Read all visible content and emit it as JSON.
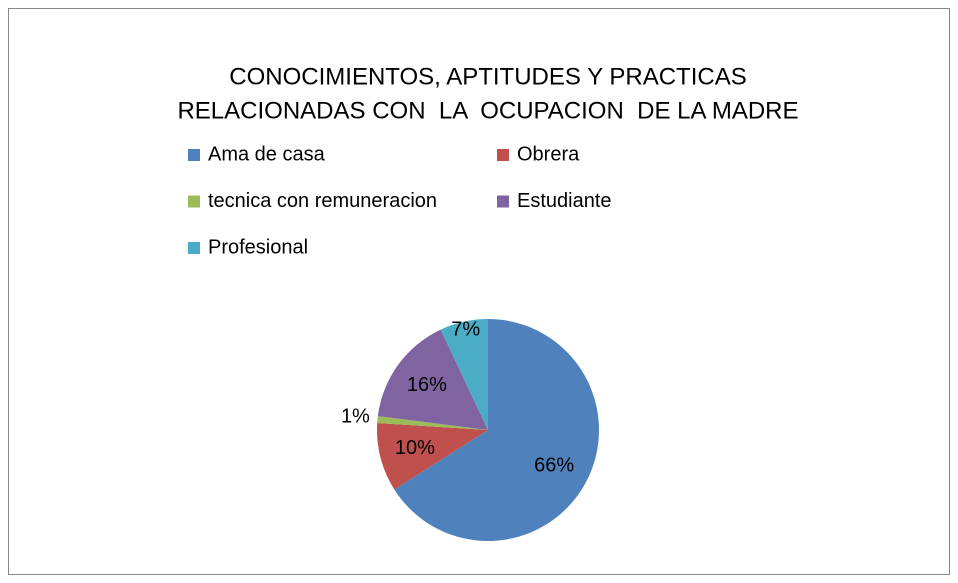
{
  "chart_data": {
    "type": "pie",
    "title": [
      "CONOCIMIENTOS, APTITUDES Y PRACTICAS",
      "RELACIONADAS CON  LA  OCUPACION  DE LA MADRE"
    ],
    "categories": [
      "Ama de casa",
      "Obrera",
      "tecnica con remuneracion",
      "Estudiante",
      "Profesional"
    ],
    "values": [
      66,
      10,
      1,
      16,
      7
    ],
    "value_labels": [
      "66%",
      "10%",
      "1%",
      "16%",
      "7%"
    ],
    "colors": [
      "#4f81bd",
      "#c0504d",
      "#9bbb59",
      "#8064a2",
      "#4bacc6"
    ],
    "legend": "top"
  }
}
